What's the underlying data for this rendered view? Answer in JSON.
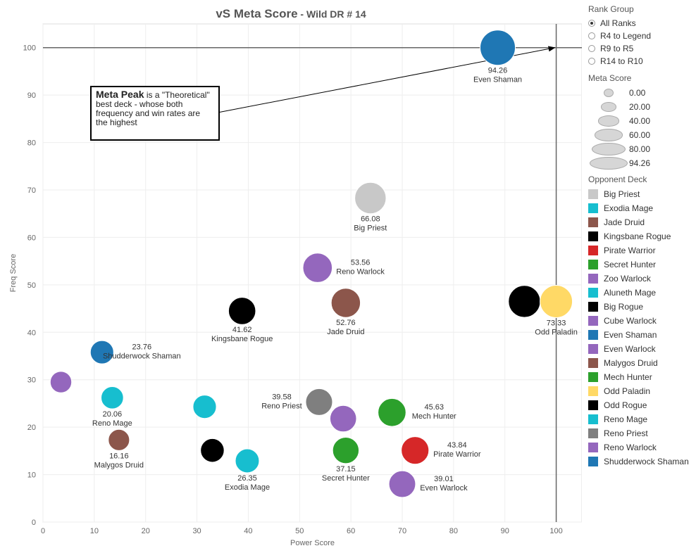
{
  "title": {
    "main": "vS Meta Score",
    "sub": " - Wild DR # 14"
  },
  "annotation": {
    "bold": "Meta Peak",
    "text": " is a \"Theoretical\" best deck - whose both frequency and win rates are the highest"
  },
  "legend": {
    "rank_title": "Rank Group",
    "ranks": [
      {
        "label": "All Ranks",
        "selected": true
      },
      {
        "label": "R4 to Legend",
        "selected": false
      },
      {
        "label": "R9 to R5",
        "selected": false
      },
      {
        "label": "R14 to R10",
        "selected": false
      }
    ],
    "size_title": "Meta Score",
    "sizes": [
      {
        "label": "0.00",
        "value": 0
      },
      {
        "label": "20.00",
        "value": 20
      },
      {
        "label": "40.00",
        "value": 40
      },
      {
        "label": "60.00",
        "value": 60
      },
      {
        "label": "80.00",
        "value": 80
      },
      {
        "label": "94.26",
        "value": 94.26
      }
    ],
    "deck_title": "Opponent Deck",
    "decks": [
      {
        "label": "Big Priest",
        "color": "#c8c8c8"
      },
      {
        "label": "Exodia Mage",
        "color": "#17becf"
      },
      {
        "label": "Jade Druid",
        "color": "#8c564b"
      },
      {
        "label": "Kingsbane Rogue",
        "color": "#000000"
      },
      {
        "label": "Pirate Warrior",
        "color": "#d62728"
      },
      {
        "label": "Secret Hunter",
        "color": "#2ca02c"
      },
      {
        "label": "Zoo Warlock",
        "color": "#9467bd"
      },
      {
        "label": "Aluneth Mage",
        "color": "#17becf"
      },
      {
        "label": "Big Rogue",
        "color": "#000000"
      },
      {
        "label": "Cube Warlock",
        "color": "#9467bd"
      },
      {
        "label": "Even Shaman",
        "color": "#1f77b4"
      },
      {
        "label": "Even Warlock",
        "color": "#9467bd"
      },
      {
        "label": "Malygos Druid",
        "color": "#8c564b"
      },
      {
        "label": "Mech Hunter",
        "color": "#2ca02c"
      },
      {
        "label": "Odd Paladin",
        "color": "#ffd966"
      },
      {
        "label": "Odd Rogue",
        "color": "#000000"
      },
      {
        "label": "Reno Mage",
        "color": "#17becf"
      },
      {
        "label": "Reno Priest",
        "color": "#7f7f7f"
      },
      {
        "label": "Reno Warlock",
        "color": "#9467bd"
      },
      {
        "label": "Shudderwock Shaman",
        "color": "#1f77b4"
      }
    ]
  },
  "chart_data": {
    "type": "scatter",
    "xlabel": "Power Score",
    "ylabel": "Freq Score",
    "xlim": [
      0,
      105
    ],
    "ylim": [
      0,
      105
    ],
    "xticks": [
      0,
      10,
      20,
      30,
      40,
      50,
      60,
      70,
      80,
      90,
      100
    ],
    "yticks": [
      0,
      10,
      20,
      30,
      40,
      50,
      60,
      70,
      80,
      90,
      100
    ],
    "grid": true,
    "legend_position": "right",
    "reference_lines": {
      "x": 100,
      "y": 100
    },
    "points": [
      {
        "deck": "Even Shaman",
        "x": 88.6,
        "y": 100,
        "score": 94.26,
        "label": "94.26",
        "labelpos": "below",
        "color": "#1f77b4"
      },
      {
        "deck": "Big Priest",
        "x": 63.8,
        "y": 68.3,
        "score": 66.08,
        "label": "66.08",
        "labelpos": "below",
        "color": "#c8c8c8"
      },
      {
        "deck": "Reno Warlock",
        "x": 53.5,
        "y": 53.6,
        "score": 53.56,
        "label": "53.56",
        "labelpos": "right",
        "color": "#9467bd"
      },
      {
        "deck": "Jade Druid",
        "x": 59.0,
        "y": 46.2,
        "score": 52.76,
        "label": "52.76",
        "labelpos": "below",
        "color": "#8c564b"
      },
      {
        "deck": "Kingsbane Rogue",
        "x": 38.8,
        "y": 44.5,
        "score": 41.62,
        "label": "41.62",
        "labelpos": "below",
        "color": "#000000"
      },
      {
        "deck": "Big Rogue",
        "x": 93.8,
        "y": 46.5,
        "score": 70,
        "label": "",
        "labelpos": "none",
        "color": "#000000"
      },
      {
        "deck": "Odd Paladin",
        "x": 100,
        "y": 46.5,
        "score": 73.33,
        "label": "73.33",
        "labelpos": "below",
        "color": "#ffd966"
      },
      {
        "deck": "Shudderwock Shaman",
        "x": 11.5,
        "y": 35.8,
        "score": 23.76,
        "label": "23.76",
        "labelpos": "right",
        "color": "#1f77b4"
      },
      {
        "deck": "Zoo Warlock",
        "x": 3.5,
        "y": 29.5,
        "score": 17,
        "label": "",
        "labelpos": "none",
        "color": "#9467bd"
      },
      {
        "deck": "Reno Mage",
        "x": 13.5,
        "y": 26.2,
        "score": 20.06,
        "label": "20.06",
        "labelpos": "below",
        "color": "#17becf"
      },
      {
        "deck": "Aluneth Mage",
        "x": 31.5,
        "y": 24.3,
        "score": 24,
        "label": "",
        "labelpos": "none",
        "color": "#17becf"
      },
      {
        "deck": "Reno Priest",
        "x": 53.8,
        "y": 25.3,
        "score": 39.58,
        "label": "39.58",
        "labelpos": "left",
        "color": "#7f7f7f"
      },
      {
        "deck": "Cube Warlock",
        "x": 58.5,
        "y": 21.8,
        "score": 38,
        "label": "",
        "labelpos": "none",
        "color": "#9467bd"
      },
      {
        "deck": "Mech Hunter",
        "x": 68.0,
        "y": 23.1,
        "score": 45.63,
        "label": "45.63",
        "labelpos": "right",
        "color": "#2ca02c"
      },
      {
        "deck": "Malygos Druid",
        "x": 14.8,
        "y": 17.3,
        "score": 16.16,
        "label": "16.16",
        "labelpos": "below",
        "color": "#8c564b"
      },
      {
        "deck": "Odd Rogue",
        "x": 33.0,
        "y": 15.1,
        "score": 25,
        "label": "",
        "labelpos": "none",
        "color": "#000000"
      },
      {
        "deck": "Exodia Mage",
        "x": 39.8,
        "y": 12.9,
        "score": 26.35,
        "label": "26.35",
        "labelpos": "below",
        "color": "#17becf"
      },
      {
        "deck": "Secret Hunter",
        "x": 59.0,
        "y": 15.1,
        "score": 37.15,
        "label": "37.15",
        "labelpos": "below",
        "color": "#2ca02c"
      },
      {
        "deck": "Pirate Warrior",
        "x": 72.5,
        "y": 15.1,
        "score": 43.84,
        "label": "43.84",
        "labelpos": "right",
        "color": "#d62728"
      },
      {
        "deck": "Even Warlock",
        "x": 70.0,
        "y": 8.0,
        "score": 39.01,
        "label": "39.01",
        "labelpos": "right",
        "color": "#9467bd"
      }
    ]
  }
}
